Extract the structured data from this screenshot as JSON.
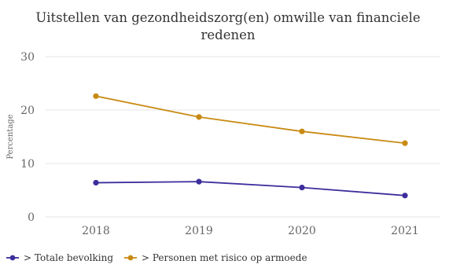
{
  "chart_data": {
    "type": "line",
    "title_lines": [
      "Uitstellen van gezondheidszorg(en) omwille van financiele",
      "redenen"
    ],
    "xlabel": "",
    "ylabel": "Percentage",
    "categories": [
      "2018",
      "2019",
      "2020",
      "2021"
    ],
    "ylim": [
      0,
      30
    ],
    "yticks": [
      0,
      10,
      20,
      30
    ],
    "grid": true,
    "legend_position": "bottom-left",
    "series": [
      {
        "name": "> Totale bevolking",
        "values": [
          6.4,
          6.6,
          5.5,
          4.0
        ],
        "color": "#3c2e9c"
      },
      {
        "name": "> Personen met risico op armoede",
        "values": [
          22.6,
          18.7,
          16.0,
          13.8
        ],
        "color": "#c88a12"
      }
    ]
  }
}
